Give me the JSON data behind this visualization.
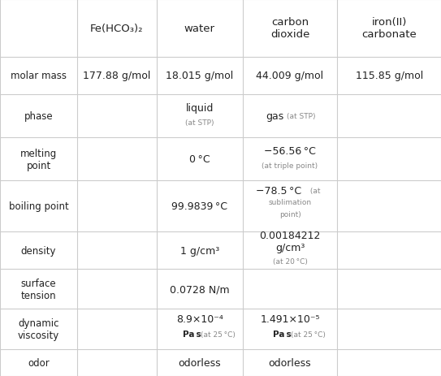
{
  "figsize": [
    5.43,
    4.64
  ],
  "dpi": 100,
  "bg_color": "#ffffff",
  "header_row": [
    "",
    "Fe(HCO₃)₂",
    "water",
    "carbon\ndioxide",
    "iron(II)\ncarbonate"
  ],
  "row_labels": [
    "molar mass",
    "phase",
    "melting\npoint",
    "boiling point",
    "density",
    "surface\ntension",
    "dynamic\nviscosity",
    "odor"
  ],
  "grid_color": "#cccccc",
  "text_color": "#222222",
  "small_color": "#888888",
  "header_font_size": 9.5,
  "label_font_size": 8.5,
  "cell_font_size": 9.0,
  "small_font_size": 6.5
}
